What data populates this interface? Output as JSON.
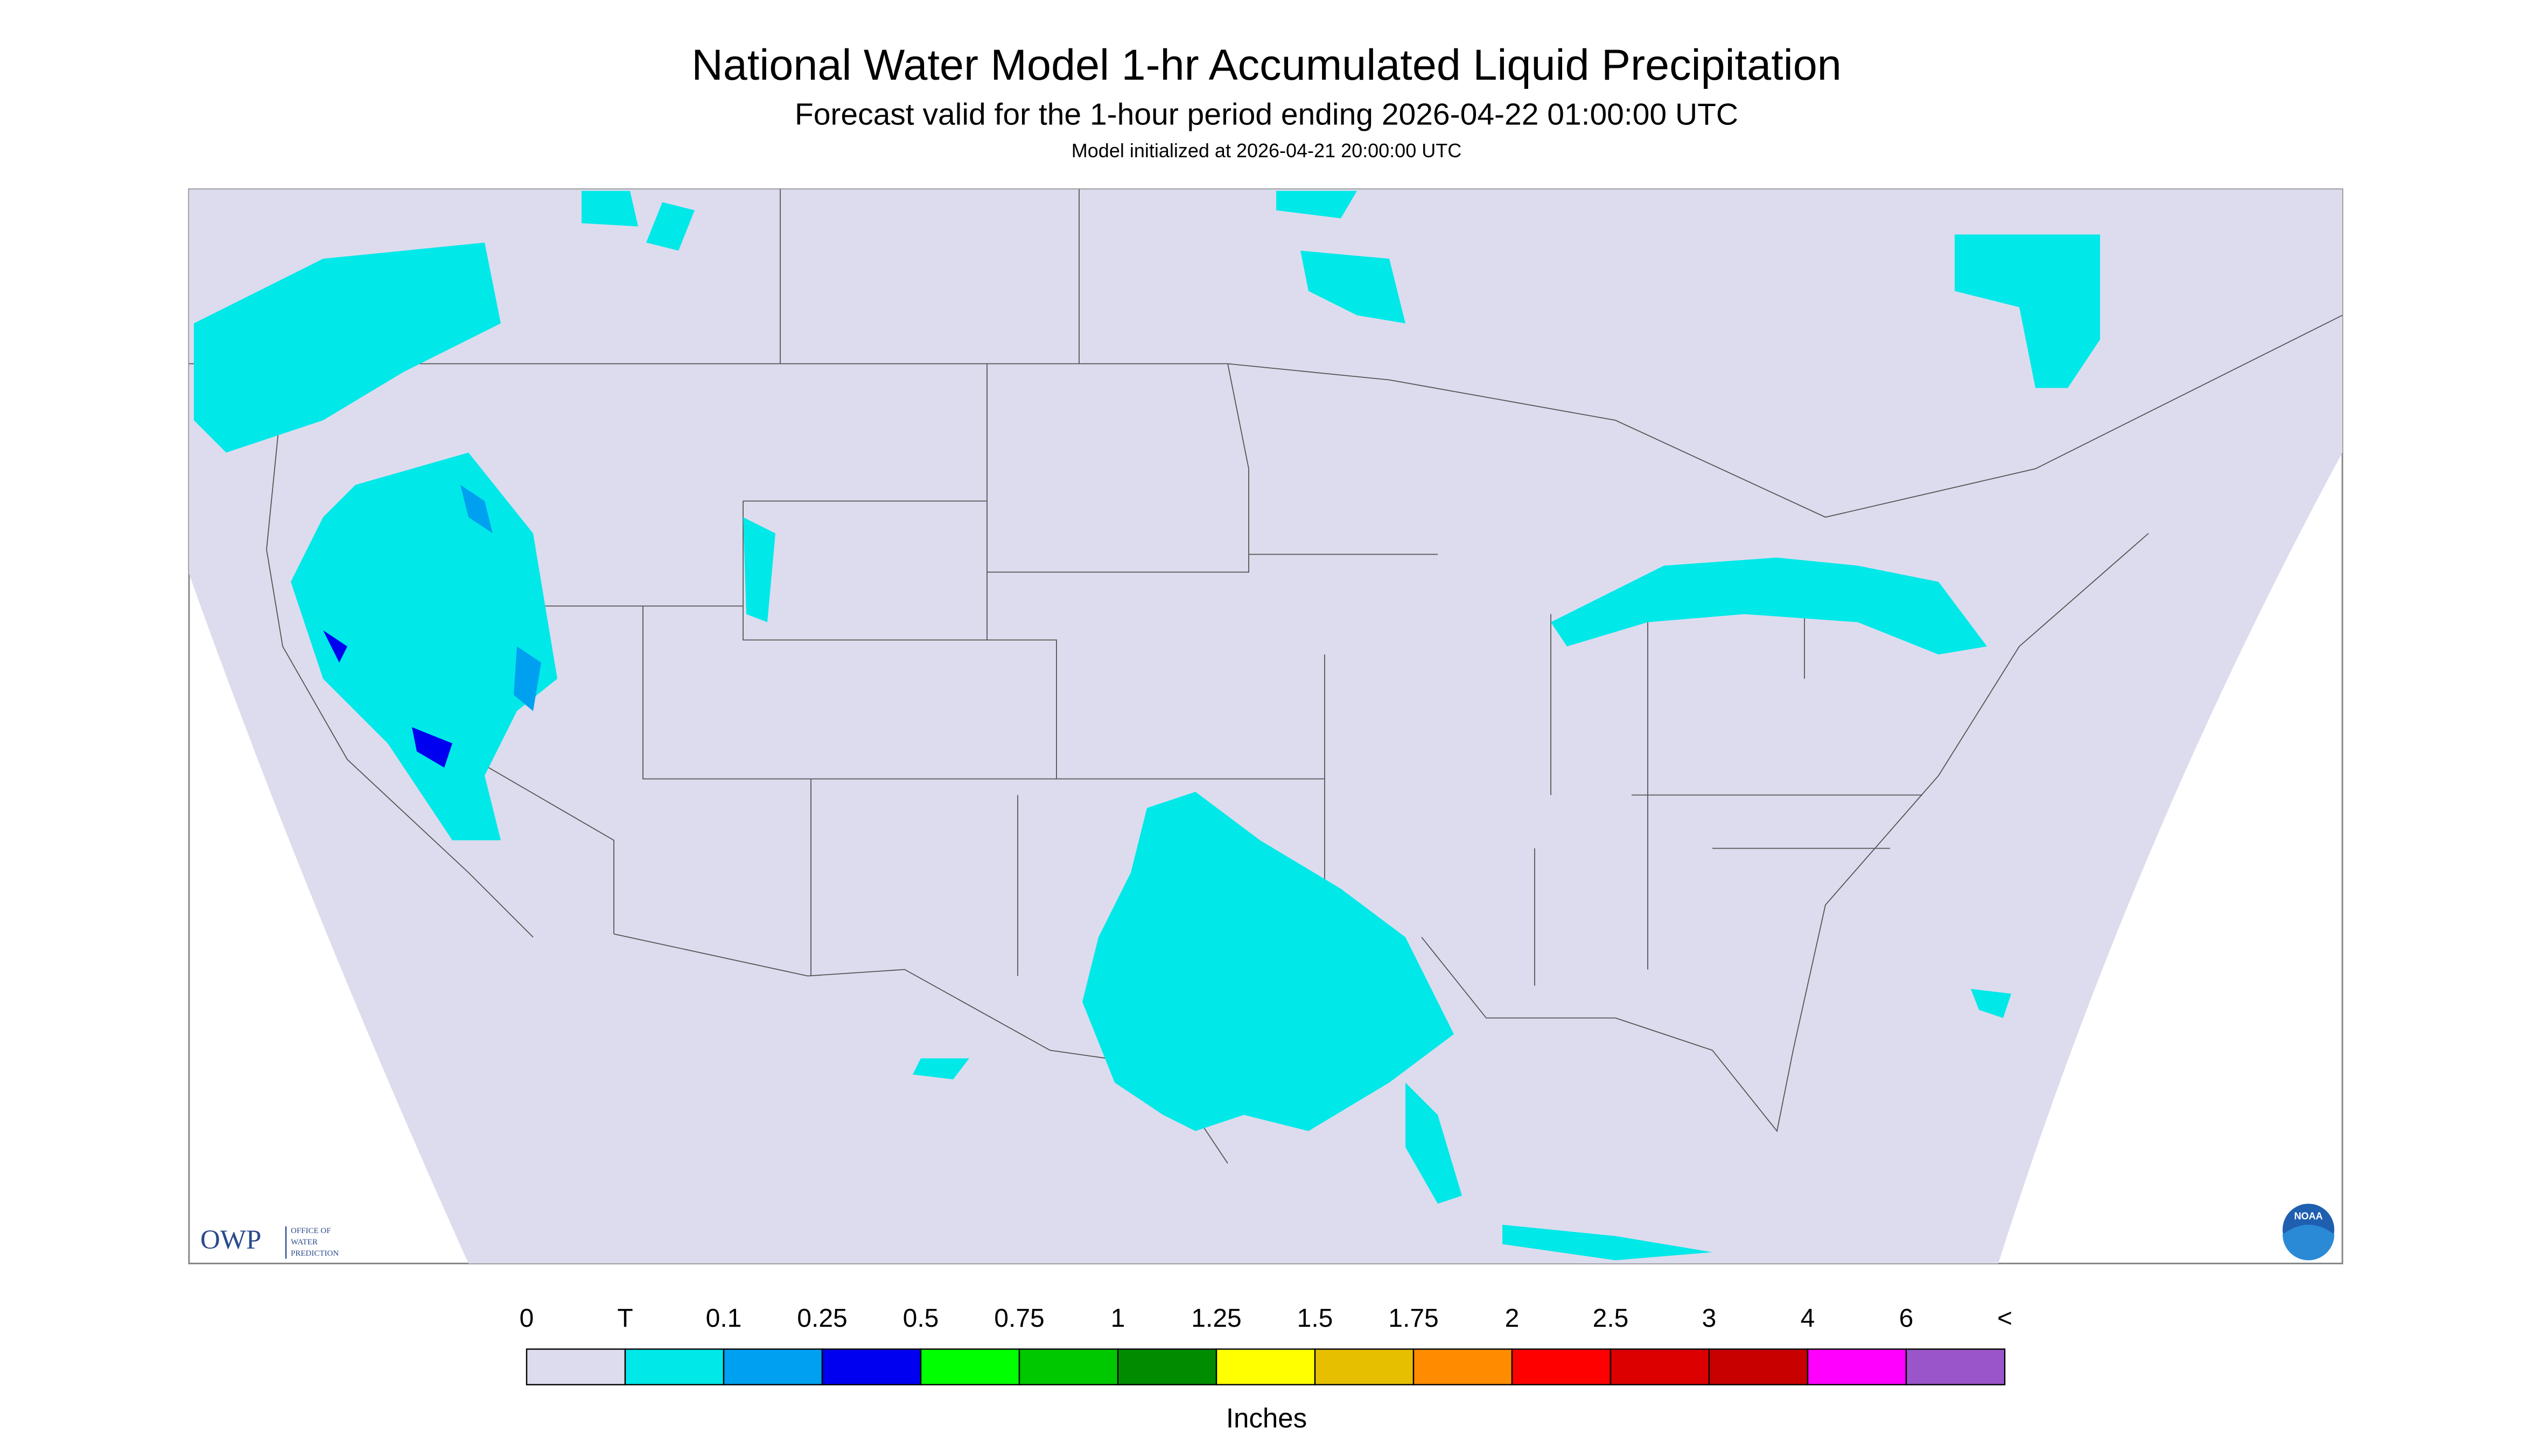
{
  "header": {
    "title": "National Water Model 1-hr Accumulated Liquid Precipitation",
    "subtitle": "Forecast valid for the 1-hour period ending 2026-04-22 01:00:00 UTC",
    "init": "Model initialized at 2026-04-21 20:00:00 UTC"
  },
  "logos": {
    "owp": "OWP",
    "owp_lines": [
      "OFFICE OF",
      "WATER",
      "PREDICTION"
    ],
    "noaa": "NOAA"
  },
  "legend": {
    "labels": [
      "0",
      "T",
      "0.1",
      "0.25",
      "0.5",
      "0.75",
      "1",
      "1.25",
      "1.5",
      "1.75",
      "2",
      "2.5",
      "3",
      "4",
      "6",
      "<"
    ],
    "colors": [
      "#dcdcee",
      "#00e8e8",
      "#00a0f0",
      "#0000f0",
      "#00ff00",
      "#00c800",
      "#008c00",
      "#ffff00",
      "#e6c000",
      "#ff8c00",
      "#ff0000",
      "#dc0000",
      "#c80000",
      "#ff00ff",
      "#9955c9"
    ],
    "unit": "Inches"
  }
}
